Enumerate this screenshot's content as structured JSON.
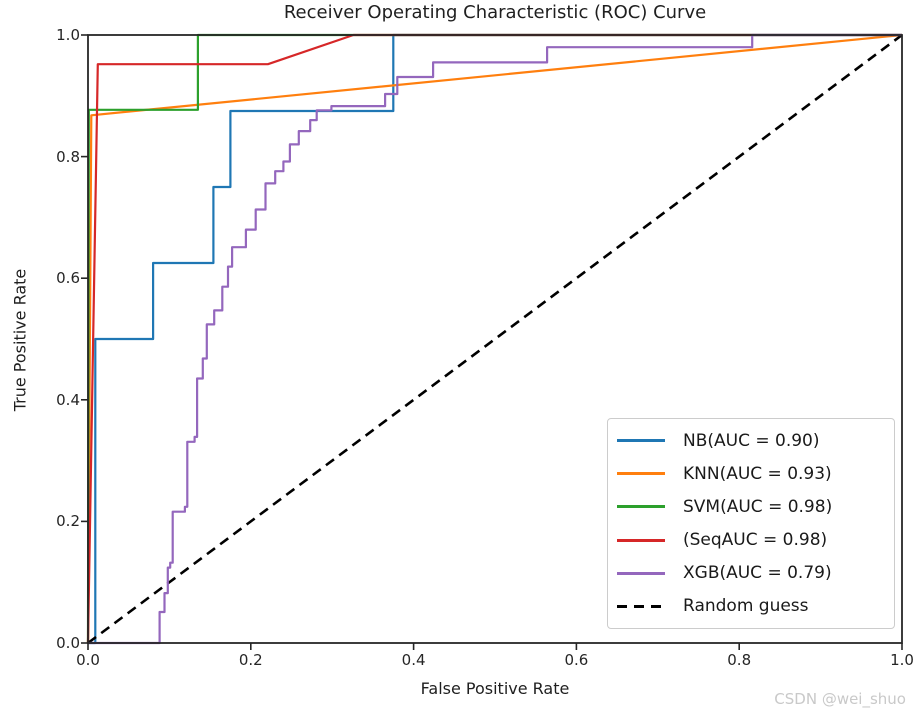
{
  "watermark": {
    "text": "CSDN @wei_shuo",
    "color": "#c9c9c9"
  },
  "chart_data": {
    "type": "line",
    "title": "Receiver Operating Characteristic (ROC) Curve",
    "xlabel": "False Positive Rate",
    "ylabel": "True Positive Rate",
    "xlim": [
      0.0,
      1.0
    ],
    "ylim": [
      0.0,
      1.0
    ],
    "xticks": [
      0.0,
      0.2,
      0.4,
      0.6,
      0.8,
      1.0
    ],
    "xtick_labels": [
      "0.0",
      "0.2",
      "0.4",
      "0.6",
      "0.8",
      "1.0"
    ],
    "yticks": [
      0.0,
      0.2,
      0.4,
      0.6,
      0.8,
      1.0
    ],
    "ytick_labels": [
      "0.0",
      "0.2",
      "0.4",
      "0.6",
      "0.8",
      "1.0"
    ],
    "grid": false,
    "legend_position": "lower right",
    "frame_color": "#262626",
    "series": [
      {
        "name": "nb",
        "label": "NB(AUC = 0.90)",
        "auc": 0.9,
        "color": "#1f77b4",
        "style": "solid",
        "zorder": 1,
        "points": [
          [
            0,
            0
          ],
          [
            0.009,
            0
          ],
          [
            0.009,
            0.5
          ],
          [
            0.08,
            0.5
          ],
          [
            0.08,
            0.625
          ],
          [
            0.154,
            0.625
          ],
          [
            0.154,
            0.75
          ],
          [
            0.175,
            0.75
          ],
          [
            0.175,
            0.875
          ],
          [
            0.375,
            0.875
          ],
          [
            0.375,
            1.0
          ],
          [
            1,
            1
          ]
        ]
      },
      {
        "name": "knn",
        "label": "KNN(AUC = 0.93)",
        "auc": 0.93,
        "color": "#ff7f0e",
        "style": "solid",
        "zorder": 2,
        "points": [
          [
            0,
            0
          ],
          [
            0.004,
            0.868
          ],
          [
            1,
            1
          ]
        ]
      },
      {
        "name": "svm",
        "label": "SVM(AUC = 0.98)",
        "auc": 0.98,
        "color": "#2ca02c",
        "style": "solid",
        "zorder": 3,
        "points": [
          [
            0,
            0
          ],
          [
            0.001,
            0.877
          ],
          [
            0.135,
            0.877
          ],
          [
            0.135,
            1.0
          ],
          [
            1,
            1
          ]
        ]
      },
      {
        "name": "seq",
        "label": "(SeqAUC = 0.98)",
        "auc": 0.98,
        "color": "#d62728",
        "style": "solid",
        "zorder": 4,
        "points": [
          [
            0,
            0
          ],
          [
            0.012,
            0.952
          ],
          [
            0.221,
            0.952
          ],
          [
            0.326,
            1.0
          ],
          [
            1,
            1
          ]
        ]
      },
      {
        "name": "xgb",
        "label": "XGB(AUC = 0.79)",
        "auc": 0.79,
        "color": "#9467bd",
        "style": "solid",
        "zorder": 6,
        "points": [
          [
            0,
            0
          ],
          [
            0.088,
            0
          ],
          [
            0.088,
            0.051
          ],
          [
            0.094,
            0.051
          ],
          [
            0.094,
            0.082
          ],
          [
            0.098,
            0.082
          ],
          [
            0.098,
            0.124
          ],
          [
            0.101,
            0.124
          ],
          [
            0.101,
            0.132
          ],
          [
            0.104,
            0.132
          ],
          [
            0.104,
            0.216
          ],
          [
            0.119,
            0.216
          ],
          [
            0.119,
            0.224
          ],
          [
            0.122,
            0.224
          ],
          [
            0.122,
            0.331
          ],
          [
            0.131,
            0.331
          ],
          [
            0.131,
            0.339
          ],
          [
            0.134,
            0.339
          ],
          [
            0.134,
            0.435
          ],
          [
            0.141,
            0.435
          ],
          [
            0.141,
            0.468
          ],
          [
            0.146,
            0.468
          ],
          [
            0.146,
            0.524
          ],
          [
            0.155,
            0.524
          ],
          [
            0.155,
            0.547
          ],
          [
            0.165,
            0.547
          ],
          [
            0.165,
            0.586
          ],
          [
            0.172,
            0.586
          ],
          [
            0.172,
            0.619
          ],
          [
            0.177,
            0.619
          ],
          [
            0.177,
            0.651
          ],
          [
            0.194,
            0.651
          ],
          [
            0.194,
            0.68
          ],
          [
            0.206,
            0.68
          ],
          [
            0.206,
            0.713
          ],
          [
            0.218,
            0.713
          ],
          [
            0.218,
            0.756
          ],
          [
            0.23,
            0.756
          ],
          [
            0.23,
            0.776
          ],
          [
            0.24,
            0.776
          ],
          [
            0.24,
            0.792
          ],
          [
            0.248,
            0.792
          ],
          [
            0.248,
            0.82
          ],
          [
            0.259,
            0.82
          ],
          [
            0.259,
            0.842
          ],
          [
            0.273,
            0.842
          ],
          [
            0.273,
            0.86
          ],
          [
            0.281,
            0.86
          ],
          [
            0.281,
            0.876
          ],
          [
            0.299,
            0.876
          ],
          [
            0.299,
            0.883
          ],
          [
            0.365,
            0.883
          ],
          [
            0.365,
            0.903
          ],
          [
            0.38,
            0.903
          ],
          [
            0.38,
            0.931
          ],
          [
            0.424,
            0.931
          ],
          [
            0.424,
            0.955
          ],
          [
            0.564,
            0.955
          ],
          [
            0.564,
            0.98
          ],
          [
            0.816,
            0.98
          ],
          [
            0.816,
            1.0
          ],
          [
            1,
            1
          ]
        ]
      },
      {
        "name": "random",
        "label": "Random guess",
        "color": "#000000",
        "style": "dashed",
        "zorder": 5,
        "points": [
          [
            0,
            0
          ],
          [
            1,
            1
          ]
        ]
      }
    ]
  }
}
